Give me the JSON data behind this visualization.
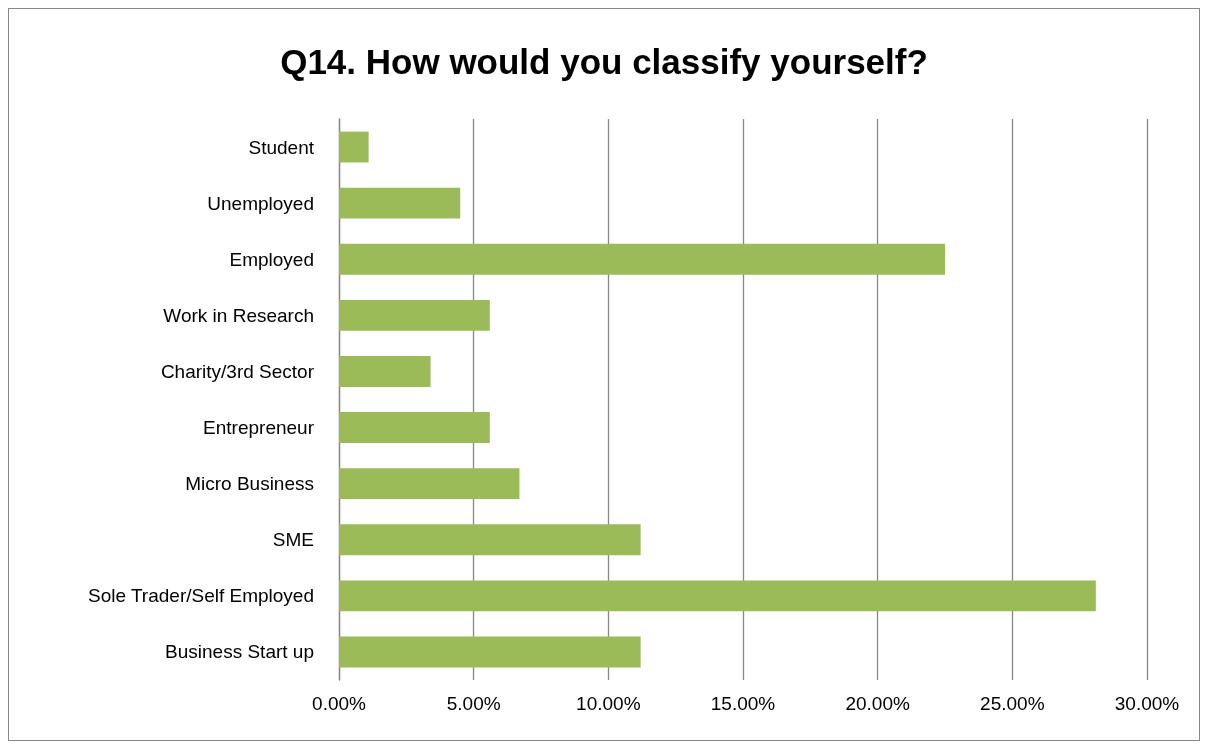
{
  "chart_data": {
    "type": "bar",
    "orientation": "horizontal",
    "title": "Q14. How would you classify yourself?",
    "categories": [
      "Student",
      "Unemployed",
      "Employed",
      "Work in Research",
      "Charity/3rd Sector",
      "Entrepreneur",
      "Micro Business",
      "SME",
      "Sole Trader/Self Employed",
      "Business Start up"
    ],
    "values": [
      1.1,
      4.5,
      22.5,
      5.6,
      3.4,
      5.6,
      6.7,
      11.2,
      28.1,
      11.2
    ],
    "color": "#9bbb59",
    "xlim": [
      0,
      30
    ],
    "xticks": [
      {
        "value": 0,
        "label": "0.00%"
      },
      {
        "value": 5,
        "label": "5.00%"
      },
      {
        "value": 10,
        "label": "10.00%"
      },
      {
        "value": 15,
        "label": "15.00%"
      },
      {
        "value": 20,
        "label": "20.00%"
      },
      {
        "value": 25,
        "label": "25.00%"
      },
      {
        "value": 30,
        "label": "30.00%"
      }
    ],
    "grid": "x"
  }
}
